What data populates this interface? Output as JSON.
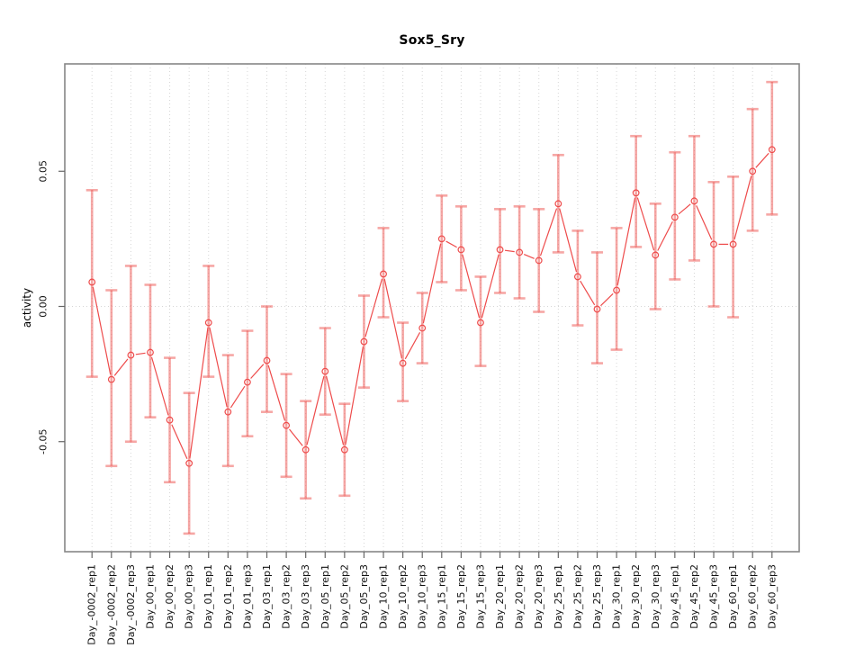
{
  "window": {
    "background": "#ffffff"
  },
  "chart_data": {
    "type": "line",
    "title": "Sox5_Sry",
    "xlabel": "",
    "ylabel": "activity",
    "legend_position": "none",
    "marker": "open-circle",
    "error_bars": true,
    "grid": {
      "vertical": "dotted line at every category",
      "horizontal": "dotted line at y=0"
    },
    "ylim": [
      -0.0907,
      0.0897
    ],
    "yticks": {
      "values": [
        -0.05,
        0,
        0.05
      ],
      "labels": [
        "-0.05",
        "0.00",
        "0.05"
      ]
    },
    "categories": [
      "Day_-0002_rep1",
      "Day_-0002_rep2",
      "Day_-0002_rep3",
      "Day_00_rep1",
      "Day_00_rep2",
      "Day_00_rep3",
      "Day_01_rep1",
      "Day_01_rep2",
      "Day_01_rep3",
      "Day_03_rep1",
      "Day_03_rep2",
      "Day_03_rep3",
      "Day_05_rep1",
      "Day_05_rep2",
      "Day_05_rep3",
      "Day_10_rep1",
      "Day_10_rep2",
      "Day_10_rep3",
      "Day_15_rep1",
      "Day_15_rep2",
      "Day_15_rep3",
      "Day_20_rep1",
      "Day_20_rep2",
      "Day_20_rep3",
      "Day_25_rep1",
      "Day_25_rep2",
      "Day_25_rep3",
      "Day_30_rep1",
      "Day_30_rep2",
      "Day_30_rep3",
      "Day_45_rep1",
      "Day_45_rep2",
      "Day_45_rep3",
      "Day_60_rep1",
      "Day_60_rep2",
      "Day_60_rep3"
    ],
    "series": [
      {
        "name": "activity",
        "values": [
          0.009,
          -0.027,
          -0.018,
          -0.017,
          -0.042,
          -0.058,
          -0.006,
          -0.039,
          -0.028,
          -0.02,
          -0.044,
          -0.053,
          -0.024,
          -0.053,
          -0.013,
          0.012,
          -0.021,
          -0.008,
          0.025,
          0.021,
          -0.006,
          0.021,
          0.02,
          0.017,
          0.038,
          0.011,
          -0.001,
          0.006,
          0.042,
          0.019,
          0.033,
          0.039,
          0.023,
          0.023,
          0.05,
          0.058
        ],
        "upper": [
          0.043,
          0.006,
          0.015,
          0.008,
          -0.019,
          -0.032,
          0.015,
          -0.018,
          -0.009,
          0.0,
          -0.025,
          -0.035,
          -0.008,
          -0.036,
          0.004,
          0.029,
          -0.006,
          0.005,
          0.041,
          0.037,
          0.011,
          0.036,
          0.037,
          0.036,
          0.056,
          0.028,
          0.02,
          0.029,
          0.063,
          0.038,
          0.057,
          0.063,
          0.046,
          0.048,
          0.073,
          0.083
        ],
        "lower": [
          -0.026,
          -0.059,
          -0.05,
          -0.041,
          -0.065,
          -0.084,
          -0.026,
          -0.059,
          -0.048,
          -0.039,
          -0.063,
          -0.071,
          -0.04,
          -0.07,
          -0.03,
          -0.004,
          -0.035,
          -0.021,
          0.009,
          0.006,
          -0.022,
          0.005,
          0.003,
          -0.002,
          0.02,
          -0.007,
          -0.021,
          -0.016,
          0.022,
          -0.001,
          0.01,
          0.017,
          0.0,
          -0.004,
          0.028,
          0.034
        ]
      }
    ],
    "colors": {
      "series": "#ee4b4b",
      "error_bar": "rgba(238,80,76,0.5)",
      "grid": "#d6d6d6",
      "frame": "#878787",
      "tick": "#666666",
      "text": "#111111"
    }
  }
}
